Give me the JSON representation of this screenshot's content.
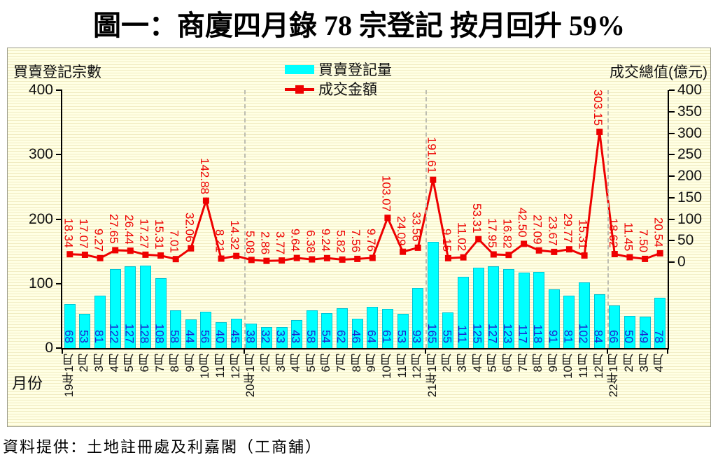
{
  "title": "圖一：商廈四月錄 78 宗登記 按月回升 59%",
  "source_note": "資料提供：土地註冊處及利嘉閣（工商舖）",
  "x_axis_caption": "月份",
  "colors": {
    "bar_fill": "#00ffff",
    "bar_border": "#00c4d4",
    "bar_label": "#2020d0",
    "line": "#ee0000",
    "separator": "#bdbdb0",
    "panel_bg": "#ffffe4"
  },
  "chart_data": {
    "type": "bar",
    "combo": "bar+line, dual axis",
    "title": "圖一：商廈四月錄 78 宗登記 按月回升 59%",
    "categories": [
      "19年1月",
      "2月",
      "3月",
      "4月",
      "5月",
      "6月",
      "7月",
      "8月",
      "9月",
      "10月",
      "11月",
      "12月",
      "20年1月",
      "2月",
      "3月",
      "4月",
      "5月",
      "6月",
      "7月",
      "8月",
      "9月",
      "10月",
      "11月",
      "12月",
      "21年1月",
      "2月",
      "3月",
      "4月",
      "5月",
      "6月",
      "7月",
      "8月",
      "9月",
      "10月",
      "11月",
      "12月",
      "22年1月",
      "2月",
      "3月",
      "4月"
    ],
    "series": [
      {
        "name": "買賣登記量",
        "type": "bar",
        "axis": "left",
        "values": [
          68,
          53,
          81,
          122,
          127,
          128,
          108,
          58,
          44,
          56,
          40,
          45,
          38,
          32,
          33,
          43,
          58,
          54,
          62,
          46,
          64,
          61,
          53,
          93,
          165,
          55,
          111,
          125,
          127,
          123,
          117,
          118,
          91,
          81,
          102,
          84,
          66,
          50,
          49,
          78
        ]
      },
      {
        "name": "成交金額",
        "type": "line",
        "axis": "right",
        "values": [
          18.34,
          17.07,
          9.27,
          27.65,
          26.44,
          17.27,
          15.31,
          7.01,
          32.06,
          142.88,
          8.21,
          14.32,
          5.08,
          2.86,
          3.77,
          9.64,
          6.38,
          9.24,
          5.82,
          7.56,
          9.76,
          103.07,
          24.09,
          33.56,
          191.61,
          9.15,
          11.02,
          53.31,
          17.95,
          16.82,
          42.5,
          27.09,
          23.67,
          29.77,
          15.31,
          303.15,
          18.62,
          11.45,
          7.5,
          20.54
        ]
      }
    ],
    "left_axis": {
      "title": "買賣登記宗數",
      "min": 0,
      "max": 400,
      "ticks": [
        0,
        100,
        200,
        300,
        400
      ]
    },
    "right_axis": {
      "title": "成交總值(億元)",
      "min": -200,
      "max": 400,
      "tick_labels": [
        0,
        50,
        100,
        150,
        200,
        250,
        300,
        350,
        400
      ]
    },
    "xlabel": "月份",
    "legend_position": "top-center",
    "grid": "fine horizontal stripes",
    "year_separator_indices": [
      12,
      24,
      36
    ]
  }
}
